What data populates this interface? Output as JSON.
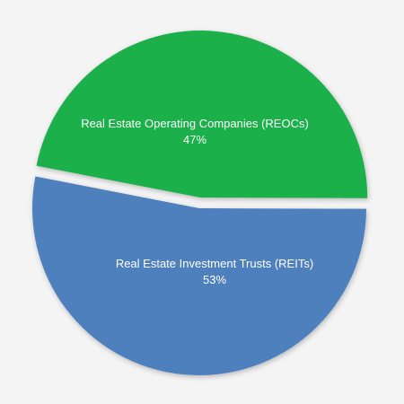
{
  "chart_data": {
    "type": "pie",
    "slices": [
      {
        "label": "Real Estate Operating Companies (REOCs)",
        "value": 47,
        "value_label": "47%",
        "color": "#1fb04c",
        "exploded": true
      },
      {
        "label": "Real Estate Investment Trusts (REITs)",
        "value": 53,
        "value_label": "53%",
        "color": "#4e80bd",
        "exploded": false
      }
    ],
    "legend": "none",
    "labels_inside": true
  }
}
